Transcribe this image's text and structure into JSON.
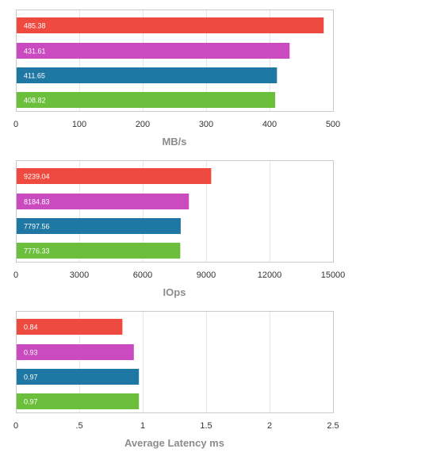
{
  "chart_data": [
    {
      "type": "bar",
      "orientation": "horizontal",
      "xlabel": "MB/s",
      "xlim": [
        0,
        500
      ],
      "ticks": [
        0,
        100,
        200,
        300,
        400,
        500
      ],
      "tick_labels": [
        "0",
        "100",
        "200",
        "300",
        "400",
        "500"
      ],
      "grid": true,
      "values": [
        485.38,
        431.61,
        411.65,
        408.82
      ],
      "value_labels": [
        "485.38",
        "431.61",
        "411.65",
        "408.82"
      ],
      "colors": [
        "#ee4a3f",
        "#c94bbf",
        "#1f77a4",
        "#6bbf3c"
      ]
    },
    {
      "type": "bar",
      "orientation": "horizontal",
      "xlabel": "IOps",
      "xlim": [
        0,
        15000
      ],
      "ticks": [
        0,
        3000,
        6000,
        9000,
        12000,
        15000
      ],
      "tick_labels": [
        "0",
        "3000",
        "6000",
        "9000",
        "12000",
        "15000"
      ],
      "grid": true,
      "values": [
        9239.04,
        8184.83,
        7797.56,
        7776.33
      ],
      "value_labels": [
        "9239.04",
        "8184.83",
        "7797.56",
        "7776.33"
      ],
      "colors": [
        "#ee4a3f",
        "#c94bbf",
        "#1f77a4",
        "#6bbf3c"
      ]
    },
    {
      "type": "bar",
      "orientation": "horizontal",
      "xlabel": "Average Latency ms",
      "xlim": [
        0,
        2.5
      ],
      "ticks": [
        0,
        0.5,
        1,
        1.5,
        2,
        2.5
      ],
      "tick_labels": [
        "0",
        ".5",
        "1",
        "1.5",
        "2",
        "2.5"
      ],
      "grid": true,
      "values": [
        0.84,
        0.93,
        0.97,
        0.97
      ],
      "value_labels": [
        "0.84",
        "0.93",
        "0.97",
        "0.97"
      ],
      "colors": [
        "#ee4a3f",
        "#c94bbf",
        "#1f77a4",
        "#6bbf3c"
      ]
    }
  ]
}
